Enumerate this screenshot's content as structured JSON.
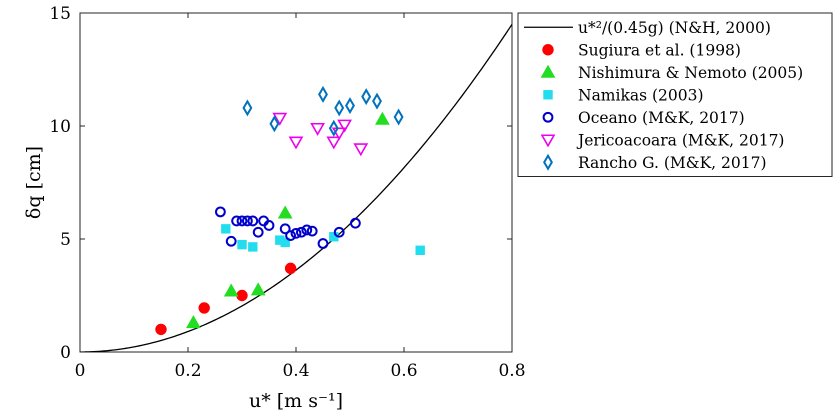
{
  "chart_data": {
    "type": "scatter",
    "xlabel": "u* [m s⁻¹]",
    "ylabel": "δq [cm]",
    "xlim": [
      0,
      0.8
    ],
    "ylim": [
      0,
      15
    ],
    "xticks": [
      "0",
      "0.2",
      "0.4",
      "0.6",
      "0.8"
    ],
    "yticks": [
      "0",
      "5",
      "10",
      "15"
    ],
    "grid": false,
    "legend_position": "outside-right",
    "curve": {
      "name": "u*²/(0.45g) (N&H, 2000)",
      "formula": "u^2/(0.45*9.81)*100",
      "color": "#000000",
      "line": "solid"
    },
    "series": [
      {
        "name": "Sugiura et al. (1998)",
        "marker": "filled-circle",
        "color": "#ff0000",
        "points": [
          [
            0.15,
            1.0
          ],
          [
            0.23,
            1.95
          ],
          [
            0.3,
            2.5
          ],
          [
            0.39,
            3.7
          ]
        ]
      },
      {
        "name": "Nishimura & Nemoto (2005)",
        "marker": "filled-triangle-up",
        "color": "#22dd22",
        "points": [
          [
            0.21,
            1.3
          ],
          [
            0.28,
            2.7
          ],
          [
            0.33,
            2.75
          ],
          [
            0.38,
            6.15
          ],
          [
            0.56,
            10.3
          ]
        ]
      },
      {
        "name": "Namikas (2003)",
        "marker": "filled-square",
        "color": "#22ddee",
        "points": [
          [
            0.27,
            5.45
          ],
          [
            0.3,
            4.75
          ],
          [
            0.32,
            4.65
          ],
          [
            0.37,
            4.95
          ],
          [
            0.38,
            4.85
          ],
          [
            0.47,
            5.1
          ],
          [
            0.63,
            4.5
          ]
        ]
      },
      {
        "name": "Oceano (M&K, 2017)",
        "marker": "open-circle",
        "color": "#0000cc",
        "points": [
          [
            0.26,
            6.2
          ],
          [
            0.28,
            4.9
          ],
          [
            0.29,
            5.8
          ],
          [
            0.3,
            5.8
          ],
          [
            0.31,
            5.8
          ],
          [
            0.32,
            5.8
          ],
          [
            0.33,
            5.3
          ],
          [
            0.34,
            5.8
          ],
          [
            0.35,
            5.6
          ],
          [
            0.38,
            5.45
          ],
          [
            0.39,
            5.15
          ],
          [
            0.4,
            5.25
          ],
          [
            0.41,
            5.3
          ],
          [
            0.42,
            5.4
          ],
          [
            0.43,
            5.35
          ],
          [
            0.45,
            4.8
          ],
          [
            0.48,
            5.3
          ],
          [
            0.51,
            5.7
          ]
        ]
      },
      {
        "name": "Jericoacoara (M&K, 2017)",
        "marker": "open-triangle-down",
        "color": "#ee00ee",
        "points": [
          [
            0.37,
            10.35
          ],
          [
            0.4,
            9.3
          ],
          [
            0.44,
            9.9
          ],
          [
            0.47,
            9.3
          ],
          [
            0.48,
            9.7
          ],
          [
            0.49,
            10.05
          ],
          [
            0.52,
            9.0
          ]
        ]
      },
      {
        "name": "Rancho G. (M&K, 2017)",
        "marker": "open-diamond",
        "color": "#0072bd",
        "points": [
          [
            0.31,
            10.8
          ],
          [
            0.36,
            10.1
          ],
          [
            0.45,
            11.4
          ],
          [
            0.47,
            9.9
          ],
          [
            0.48,
            10.8
          ],
          [
            0.5,
            10.9
          ],
          [
            0.53,
            11.3
          ],
          [
            0.55,
            11.1
          ],
          [
            0.59,
            10.4
          ]
        ]
      }
    ]
  }
}
